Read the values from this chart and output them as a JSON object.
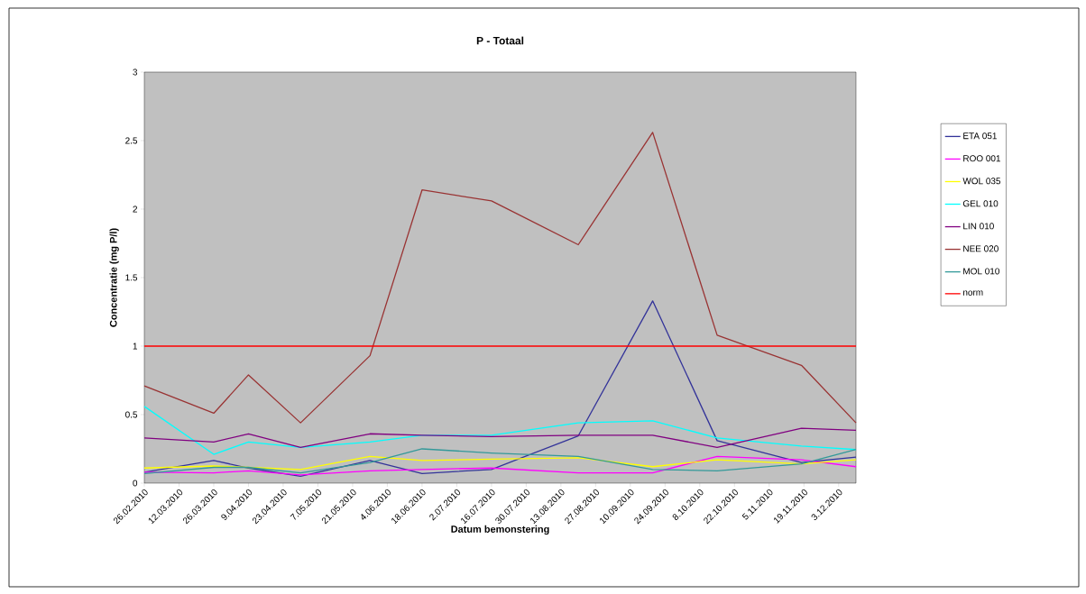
{
  "chart_data": {
    "type": "line",
    "title": "P - Totaal",
    "xlabel": "Datum bemonstering",
    "ylabel": "Concentratie (mg P/l)",
    "x": [
      "2010-02-26",
      "2010-03-26",
      "2010-04-09",
      "2010-04-30",
      "2010-05-28",
      "2010-06-18",
      "2010-07-16",
      "2010-08-20",
      "2010-09-19",
      "2010-10-15",
      "2010-11-18",
      "2010-12-10"
    ],
    "series": [
      {
        "name": "ETA 051",
        "color": "#333399",
        "values": [
          0.08,
          0.165,
          0.11,
          0.05,
          0.165,
          0.07,
          0.1,
          0.345,
          1.33,
          0.31,
          0.15,
          0.19
        ]
      },
      {
        "name": "ROO 001",
        "color": "#ff00ff",
        "values": [
          0.08,
          0.075,
          0.09,
          0.06,
          0.09,
          0.1,
          0.11,
          0.075,
          0.075,
          0.195,
          0.17,
          0.12
        ]
      },
      {
        "name": "WOL 035",
        "color": "#ffff00",
        "values": [
          0.11,
          0.125,
          0.115,
          0.1,
          0.195,
          0.165,
          0.175,
          0.185,
          0.12,
          0.17,
          0.14,
          0.17
        ]
      },
      {
        "name": "GEL 010",
        "color": "#00ffff",
        "values": [
          0.56,
          0.21,
          0.3,
          0.26,
          0.3,
          0.35,
          0.35,
          0.44,
          0.455,
          0.33,
          0.27,
          0.245
        ]
      },
      {
        "name": "LIN 010",
        "color": "#800080",
        "values": [
          0.33,
          0.3,
          0.36,
          0.26,
          0.36,
          0.35,
          0.34,
          0.35,
          0.35,
          0.26,
          0.4,
          0.385
        ]
      },
      {
        "name": "NEE 020",
        "color": "#993333",
        "values": [
          0.71,
          0.51,
          0.79,
          0.44,
          0.93,
          2.14,
          2.06,
          1.74,
          2.56,
          1.08,
          0.86,
          0.44
        ]
      },
      {
        "name": "MOL 010",
        "color": "#339999",
        "values": [
          0.07,
          0.115,
          0.115,
          0.075,
          0.15,
          0.25,
          0.22,
          0.195,
          0.1,
          0.09,
          0.14,
          0.245
        ]
      }
    ],
    "ref_lines": [
      {
        "axis": "y",
        "value": 1,
        "label": "norm",
        "color": "#ff0000"
      }
    ],
    "xlim": [
      "2010-02-26",
      "2010-12-10"
    ],
    "xticks": [
      {
        "value": "2010-02-26",
        "label": "26.02.2010"
      },
      {
        "value": "2010-03-12",
        "label": "12.03.2010"
      },
      {
        "value": "2010-03-26",
        "label": "26.03.2010"
      },
      {
        "value": "2010-04-09",
        "label": "9.04.2010"
      },
      {
        "value": "2010-04-23",
        "label": "23.04.2010"
      },
      {
        "value": "2010-05-07",
        "label": "7.05.2010"
      },
      {
        "value": "2010-05-21",
        "label": "21.05.2010"
      },
      {
        "value": "2010-06-04",
        "label": "4.06.2010"
      },
      {
        "value": "2010-06-18",
        "label": "18.06.2010"
      },
      {
        "value": "2010-07-02",
        "label": "2.07.2010"
      },
      {
        "value": "2010-07-16",
        "label": "16.07.2010"
      },
      {
        "value": "2010-07-30",
        "label": "30.07.2010"
      },
      {
        "value": "2010-08-13",
        "label": "13.08.2010"
      },
      {
        "value": "2010-08-27",
        "label": "27.08.2010"
      },
      {
        "value": "2010-09-10",
        "label": "10.09.2010"
      },
      {
        "value": "2010-09-24",
        "label": "24.09.2010"
      },
      {
        "value": "2010-10-08",
        "label": "8.10.2010"
      },
      {
        "value": "2010-10-22",
        "label": "22.10.2010"
      },
      {
        "value": "2010-11-05",
        "label": "5.11.2010"
      },
      {
        "value": "2010-11-19",
        "label": "19.11.2010"
      },
      {
        "value": "2010-12-03",
        "label": "3.12.2010"
      }
    ],
    "ylim": [
      0,
      3
    ],
    "yticks": [
      0,
      0.5,
      1,
      1.5,
      2,
      2.5,
      3
    ],
    "legend": "right",
    "marker": "none",
    "line_style": "solid"
  }
}
